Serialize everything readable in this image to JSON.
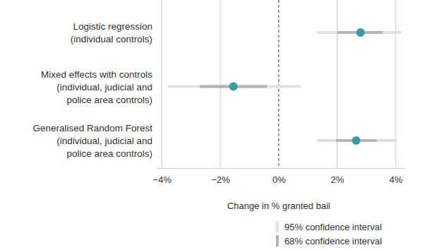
{
  "chart_data": {
    "type": "dot",
    "orientation": "horizontal",
    "categories": [
      "Logistic regression\n(individual controls)",
      "Mixed effects with controls\n(individual, judicial and\npolice area controls)",
      "Generalised Random Forest\n(individual, judicial and\npolice area controls)"
    ],
    "values": [
      2.8,
      -1.55,
      2.65
    ],
    "color": "#3a9aa6",
    "intervals": [
      {
        "name": "95% confidence interval",
        "color": "#e0e0e0",
        "low": [
          1.3,
          -3.8,
          1.3
        ],
        "high": [
          4.2,
          0.75,
          4.05
        ]
      },
      {
        "name": "68% confidence interval",
        "color": "#b4b4b4",
        "low": [
          2.0,
          -2.7,
          1.95
        ],
        "high": [
          3.55,
          -0.4,
          3.35
        ]
      }
    ],
    "xlabel": "Change in % granted bail",
    "xlim": [
      -4.2,
      4.3
    ],
    "xticks": [
      {
        "value": -4,
        "label": "−4%"
      },
      {
        "value": -2,
        "label": "−2%"
      },
      {
        "value": 0,
        "label": "0%"
      },
      {
        "value": 2,
        "label": "2%"
      },
      {
        "value": 4,
        "label": "4%"
      }
    ],
    "grid": true,
    "legend": "bottom-right"
  }
}
